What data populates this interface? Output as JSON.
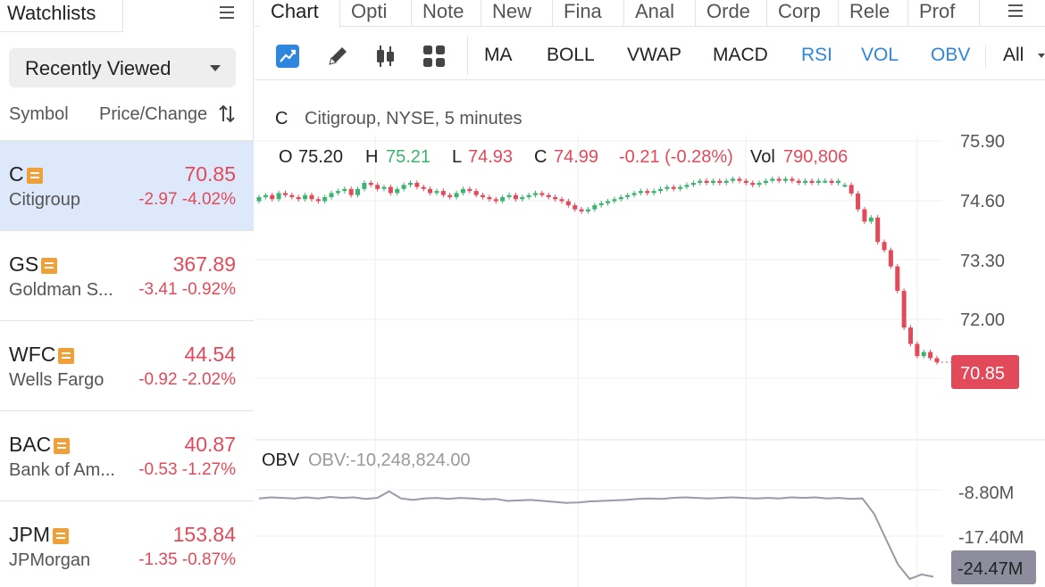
{
  "watchlists": {
    "title": "Watchlists",
    "menu_icon": "list-menu-icon",
    "selector": "Recently Viewed",
    "columns": {
      "symbol": "Symbol",
      "price_change": "Price/Change"
    },
    "rows": [
      {
        "symbol": "C",
        "name": "Citigroup",
        "price": "70.85",
        "change": "-2.97 -4.02%",
        "selected": true
      },
      {
        "symbol": "GS",
        "name": "Goldman S...",
        "price": "367.89",
        "change": "-3.41 -0.92%",
        "selected": false
      },
      {
        "symbol": "WFC",
        "name": "Wells Fargo",
        "price": "44.54",
        "change": "-0.92 -2.02%",
        "selected": false
      },
      {
        "symbol": "BAC",
        "name": "Bank of Am...",
        "price": "40.87",
        "change": "-0.53 -1.27%",
        "selected": false
      },
      {
        "symbol": "JPM",
        "name": "JPMorgan",
        "price": "153.84",
        "change": "-1.35 -0.87%",
        "selected": false
      }
    ]
  },
  "tabs": [
    "Chart",
    "Opti",
    "Note",
    "New",
    "Fina",
    "Anal",
    "Orde",
    "Corp",
    "Rele",
    "Prof"
  ],
  "toolbar": {
    "tools": [
      "trend-icon",
      "pencil-icon",
      "candlestick-icon",
      "grid-icon"
    ],
    "indicators": [
      {
        "label": "MA",
        "active": false
      },
      {
        "label": "BOLL",
        "active": false
      },
      {
        "label": "VWAP",
        "active": false
      },
      {
        "label": "MACD",
        "active": false
      },
      {
        "label": "RSI",
        "active": true
      },
      {
        "label": "VOL",
        "active": true
      },
      {
        "label": "OBV",
        "active": true
      },
      {
        "label": "All",
        "active": false
      }
    ]
  },
  "chart": {
    "header_symbol": "C",
    "header_desc": "Citigroup, NYSE, 5 minutes",
    "ohlc": {
      "o_label": "O",
      "o": "75.20",
      "h_label": "H",
      "h": "75.21",
      "l_label": "L",
      "l": "74.93",
      "c_label": "C",
      "c": "74.99",
      "change": "-0.21 (-0.28%)",
      "vol_label": "Vol",
      "vol": "790,806"
    },
    "y_ticks": [
      "75.90",
      "74.60",
      "73.30",
      "72.00"
    ],
    "last_price": "70.85",
    "obv": {
      "label": "OBV",
      "value_text": "OBV:-10,248,824.00",
      "y_ticks": [
        "-8.80M",
        "-17.40M"
      ],
      "last": "-24.47M"
    },
    "colors": {
      "up": "#3cb371",
      "down": "#e24a5a",
      "obv_line": "#9a9aa8",
      "price_tag": "#e24a5a",
      "obv_tag": "#8d8d9e",
      "active_indicator": "#2e86de"
    }
  },
  "chart_data": [
    {
      "type": "candlestick",
      "title": "Citigroup, NYSE, 5 minutes",
      "ylim": [
        70.5,
        76.3
      ],
      "y_ticks": [
        75.9,
        74.6,
        73.3,
        72.0
      ],
      "series": [
        {
          "name": "C",
          "close": [
            74.9,
            74.95,
            74.85,
            75.0,
            74.95,
            74.9,
            74.85,
            74.95,
            74.85,
            74.8,
            74.9,
            75.0,
            75.05,
            75.1,
            74.95,
            75.1,
            75.25,
            75.2,
            75.1,
            75.15,
            75.0,
            75.1,
            75.2,
            75.25,
            75.15,
            75.1,
            75.0,
            75.05,
            74.95,
            74.9,
            75.0,
            75.1,
            75.05,
            74.95,
            74.9,
            74.85,
            74.8,
            74.9,
            74.95,
            74.85,
            74.9,
            74.95,
            75.0,
            74.95,
            74.9,
            74.85,
            74.8,
            74.7,
            74.6,
            74.55,
            74.6,
            74.7,
            74.75,
            74.8,
            74.85,
            74.9,
            74.95,
            75.0,
            75.05,
            75.0,
            75.05,
            75.1,
            75.15,
            75.1,
            75.15,
            75.2,
            75.25,
            75.3,
            75.25,
            75.3,
            75.25,
            75.3,
            75.35,
            75.3,
            75.25,
            75.2,
            75.25,
            75.3,
            75.35,
            75.3,
            75.35,
            75.3,
            75.25,
            75.3,
            75.25,
            75.3,
            75.3,
            75.25,
            75.3,
            75.2,
            74.99,
            74.6,
            74.3,
            74.4,
            73.8,
            73.6,
            73.2,
            72.6,
            71.7,
            71.3,
            71.0,
            71.1,
            70.95,
            70.85
          ],
          "open": [
            74.8,
            74.9,
            74.95,
            74.85,
            75.0,
            74.95,
            74.9,
            74.85,
            74.95,
            74.85,
            74.8,
            74.9,
            75.0,
            75.05,
            75.1,
            74.95,
            75.1,
            75.25,
            75.2,
            75.1,
            75.15,
            75.0,
            75.1,
            75.2,
            75.25,
            75.15,
            75.1,
            75.0,
            75.05,
            74.95,
            74.9,
            75.0,
            75.1,
            75.05,
            74.95,
            74.9,
            74.85,
            74.8,
            74.9,
            74.95,
            74.85,
            74.9,
            74.95,
            75.0,
            74.95,
            74.9,
            74.85,
            74.8,
            74.7,
            74.6,
            74.55,
            74.6,
            74.7,
            74.75,
            74.8,
            74.85,
            74.9,
            74.95,
            75.0,
            75.05,
            75.0,
            75.05,
            75.1,
            75.15,
            75.1,
            75.15,
            75.2,
            75.25,
            75.3,
            75.25,
            75.3,
            75.25,
            75.3,
            75.35,
            75.3,
            75.25,
            75.2,
            75.25,
            75.3,
            75.35,
            75.3,
            75.35,
            75.3,
            75.25,
            75.3,
            75.25,
            75.3,
            75.3,
            75.25,
            75.2,
            75.2,
            74.99,
            74.6,
            74.3,
            74.4,
            73.8,
            73.6,
            73.2,
            72.6,
            71.7,
            71.3,
            71.0,
            71.1,
            70.95
          ]
        }
      ]
    },
    {
      "type": "line",
      "title": "OBV",
      "ylabel": "",
      "y_ticks": [
        -8.8,
        -17.4
      ],
      "ylim": [
        -26.5,
        -4.0
      ],
      "series": [
        {
          "name": "OBV",
          "values": [
            -8.9,
            -8.7,
            -8.8,
            -8.9,
            -8.7,
            -8.9,
            -8.6,
            -8.8,
            -8.7,
            -9.0,
            -8.8,
            -7.5,
            -8.9,
            -9.2,
            -8.9,
            -8.8,
            -9.0,
            -8.8,
            -8.9,
            -9.1,
            -9.0,
            -9.4,
            -9.3,
            -9.2,
            -9.4,
            -9.6,
            -9.8,
            -9.7,
            -9.5,
            -9.4,
            -9.3,
            -9.2,
            -9.0,
            -8.9,
            -9.0,
            -8.8,
            -8.7,
            -8.8,
            -8.9,
            -8.8,
            -8.7,
            -8.8,
            -8.9,
            -8.8,
            -8.9,
            -8.7,
            -8.8,
            -8.7,
            -8.9,
            -8.8,
            -9.0,
            -8.9,
            -12.0,
            -17.0,
            -22.0,
            -24.9,
            -24.0,
            -24.47
          ]
        }
      ]
    }
  ]
}
